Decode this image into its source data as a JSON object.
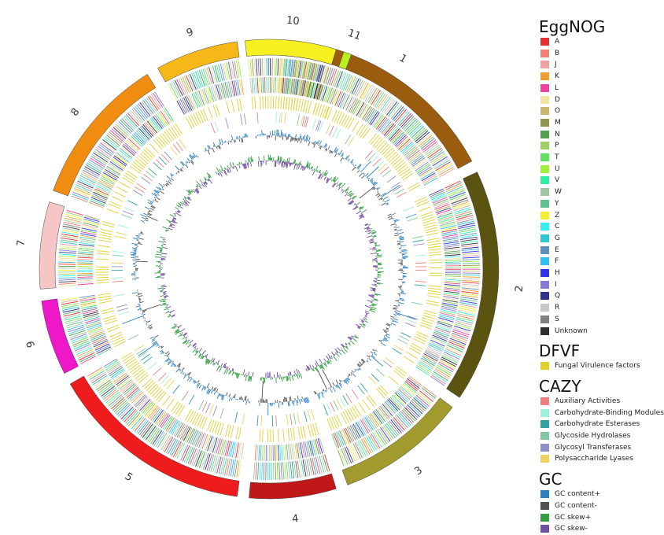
{
  "chart_data": {
    "type": "circos",
    "chromosomes": [
      {
        "label": "1",
        "color": "#9a5d10",
        "start_deg": 3,
        "end_deg": 62
      },
      {
        "label": "2",
        "color": "#5a5410",
        "start_deg": 65,
        "end_deg": 124
      },
      {
        "label": "3",
        "color": "#a19a2c",
        "start_deg": 127,
        "end_deg": 160
      },
      {
        "label": "4",
        "color": "#c01818",
        "start_deg": 163,
        "end_deg": 185
      },
      {
        "label": "5",
        "color": "#ee1c1c",
        "start_deg": 188,
        "end_deg": 240
      },
      {
        "label": "6",
        "color": "#ee18c8",
        "start_deg": 243,
        "end_deg": 262
      },
      {
        "label": "7",
        "color": "#f6c6c6",
        "start_deg": 265,
        "end_deg": 287
      },
      {
        "label": "8",
        "color": "#f08c10",
        "start_deg": 290,
        "end_deg": 328
      },
      {
        "label": "9",
        "color": "#f6b818",
        "start_deg": 331,
        "end_deg": 352
      },
      {
        "label": "10",
        "color": "#f6f020",
        "start_deg": 354,
        "end_deg": 377
      },
      {
        "label": "11",
        "color": "#b8f020",
        "start_deg": 379,
        "end_deg": 381
      }
    ],
    "legend_groups": [
      {
        "title": "EggNOG",
        "items": [
          {
            "label": "A",
            "color": "#e83030"
          },
          {
            "label": "B",
            "color": "#f08070"
          },
          {
            "label": "J",
            "color": "#f0a0a0"
          },
          {
            "label": "K",
            "color": "#f0a030"
          },
          {
            "label": "L",
            "color": "#f040a0"
          },
          {
            "label": "D",
            "color": "#f0e4a0"
          },
          {
            "label": "O",
            "color": "#c8b870"
          },
          {
            "label": "M",
            "color": "#909850"
          },
          {
            "label": "N",
            "color": "#50a050"
          },
          {
            "label": "P",
            "color": "#a0d060"
          },
          {
            "label": "T",
            "color": "#60e060"
          },
          {
            "label": "U",
            "color": "#a0f040"
          },
          {
            "label": "V",
            "color": "#30f0a0"
          },
          {
            "label": "W",
            "color": "#a0c8a0"
          },
          {
            "label": "Y",
            "color": "#60c090"
          },
          {
            "label": "Z",
            "color": "#f0f030"
          },
          {
            "label": "C",
            "color": "#30f0f0"
          },
          {
            "label": "G",
            "color": "#30c8d0"
          },
          {
            "label": "E",
            "color": "#6090c0"
          },
          {
            "label": "F",
            "color": "#30c0f0"
          },
          {
            "label": "H",
            "color": "#3030f0"
          },
          {
            "label": "I",
            "color": "#8878d8"
          },
          {
            "label": "Q",
            "color": "#303090"
          },
          {
            "label": "R",
            "color": "#c8c8c8"
          },
          {
            "label": "S",
            "color": "#808080"
          },
          {
            "label": "Unknown",
            "color": "#303030"
          }
        ]
      },
      {
        "title": "DFVF",
        "items": [
          {
            "label": "Fungal Virulence factors",
            "color": "#e0d030"
          }
        ]
      },
      {
        "title": "CAZY",
        "items": [
          {
            "label": "Auxiliary Activities",
            "color": "#f08080"
          },
          {
            "label": "Carbohydrate-Binding Modules",
            "color": "#a0f0e0"
          },
          {
            "label": "Carbohydrate Esterases",
            "color": "#30a0a0"
          },
          {
            "label": "Glycoside Hydrolases",
            "color": "#80c8a0"
          },
          {
            "label": "Glycosyl Transferases",
            "color": "#9090c8"
          },
          {
            "label": "Polysaccharide Lyases",
            "color": "#f0d060"
          }
        ]
      },
      {
        "title": "GC",
        "items": [
          {
            "label": "GC content+",
            "color": "#3080c0"
          },
          {
            "label": "GC content-",
            "color": "#505050"
          },
          {
            "label": "GC skew+",
            "color": "#30a040"
          },
          {
            "label": "GC skew-",
            "color": "#7050a0"
          }
        ]
      }
    ]
  }
}
